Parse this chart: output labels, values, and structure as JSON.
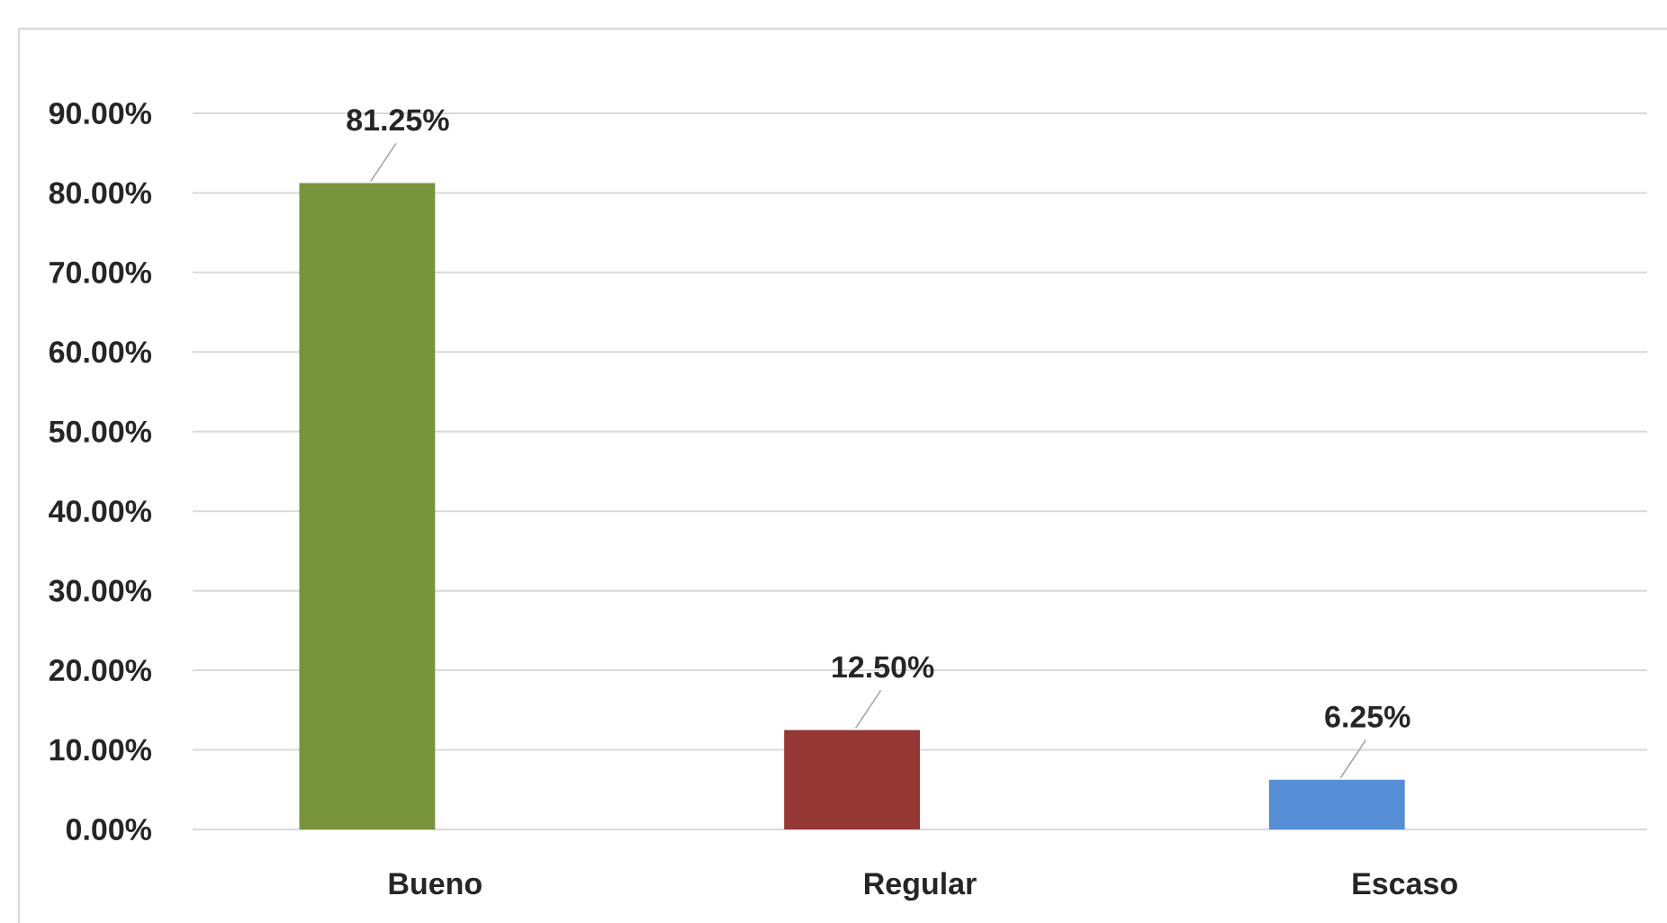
{
  "chart_data": {
    "type": "bar",
    "categories": [
      "Bueno",
      "Regular",
      "Escaso"
    ],
    "values": [
      81.25,
      12.5,
      6.25
    ],
    "colors": [
      "#77933c",
      "#953735",
      "#558ed5"
    ],
    "value_labels": [
      "81.25%",
      "12.50%",
      "6.25%"
    ],
    "ylim": [
      0,
      90
    ],
    "yticks": [
      {
        "value": 0,
        "label": "0.00%"
      },
      {
        "value": 10,
        "label": "10.00%"
      },
      {
        "value": 20,
        "label": "20.00%"
      },
      {
        "value": 30,
        "label": "30.00%"
      },
      {
        "value": 40,
        "label": "40.00%"
      },
      {
        "value": 50,
        "label": "50.00%"
      },
      {
        "value": 60,
        "label": "60.00%"
      },
      {
        "value": 70,
        "label": "70.00%"
      },
      {
        "value": 80,
        "label": "80.00%"
      },
      {
        "value": 90,
        "label": "90.00%"
      }
    ],
    "grid": "y"
  }
}
